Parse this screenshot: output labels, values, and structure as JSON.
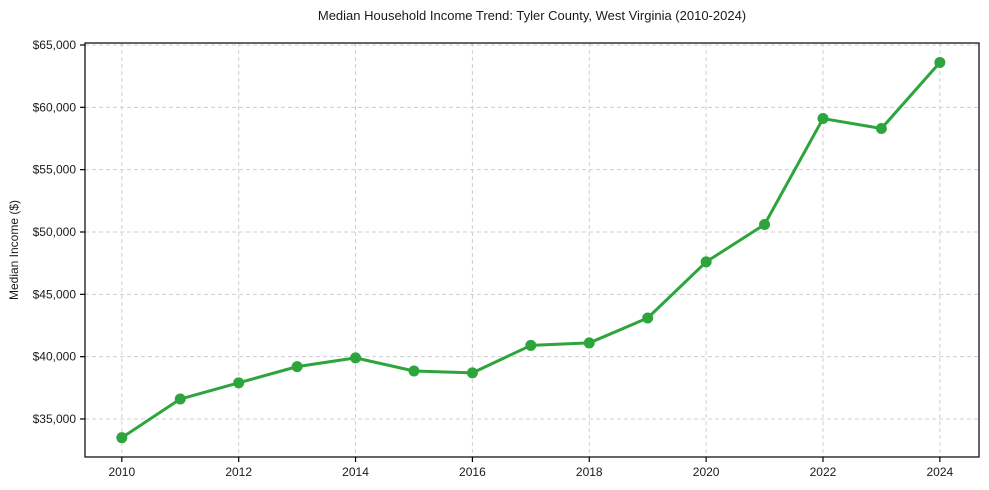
{
  "chart_data": {
    "type": "line",
    "title": "Median Household Income Trend: Tyler County, West Virginia (2010-2024)",
    "xlabel": "",
    "ylabel": "Median Income ($)",
    "x": [
      2010,
      2011,
      2012,
      2013,
      2014,
      2015,
      2016,
      2017,
      2018,
      2019,
      2020,
      2021,
      2022,
      2023,
      2024
    ],
    "series": [
      {
        "name": "Median Household Income",
        "values": [
          33500,
          36600,
          37900,
          39200,
          39900,
          38850,
          38700,
          40900,
          41100,
          43100,
          47600,
          50600,
          59100,
          58300,
          63600
        ]
      }
    ],
    "xlim": [
      2009.37,
      2024.67
    ],
    "ylim": [
      31950,
      65160
    ],
    "xticks": [
      {
        "value": 2010,
        "label": "2010"
      },
      {
        "value": 2012,
        "label": "2012"
      },
      {
        "value": 2014,
        "label": "2014"
      },
      {
        "value": 2016,
        "label": "2016"
      },
      {
        "value": 2018,
        "label": "2018"
      },
      {
        "value": 2020,
        "label": "2020"
      },
      {
        "value": 2022,
        "label": "2022"
      },
      {
        "value": 2024,
        "label": "2024"
      }
    ],
    "yticks": [
      {
        "value": 35000,
        "label": "$35,000"
      },
      {
        "value": 40000,
        "label": "$40,000"
      },
      {
        "value": 45000,
        "label": "$45,000"
      },
      {
        "value": 50000,
        "label": "$50,000"
      },
      {
        "value": 55000,
        "label": "$55,000"
      },
      {
        "value": 60000,
        "label": "$60,000"
      },
      {
        "value": 65000,
        "label": "$65,000"
      }
    ],
    "grid": true,
    "legend": "none",
    "marker": "circle",
    "colors": {
      "line": "#2da53c",
      "marker": "#2da53c",
      "grid": "#cfcfcf",
      "spine": "#000000",
      "tick_text": "#1a1a1a",
      "background": "#ffffff"
    }
  }
}
